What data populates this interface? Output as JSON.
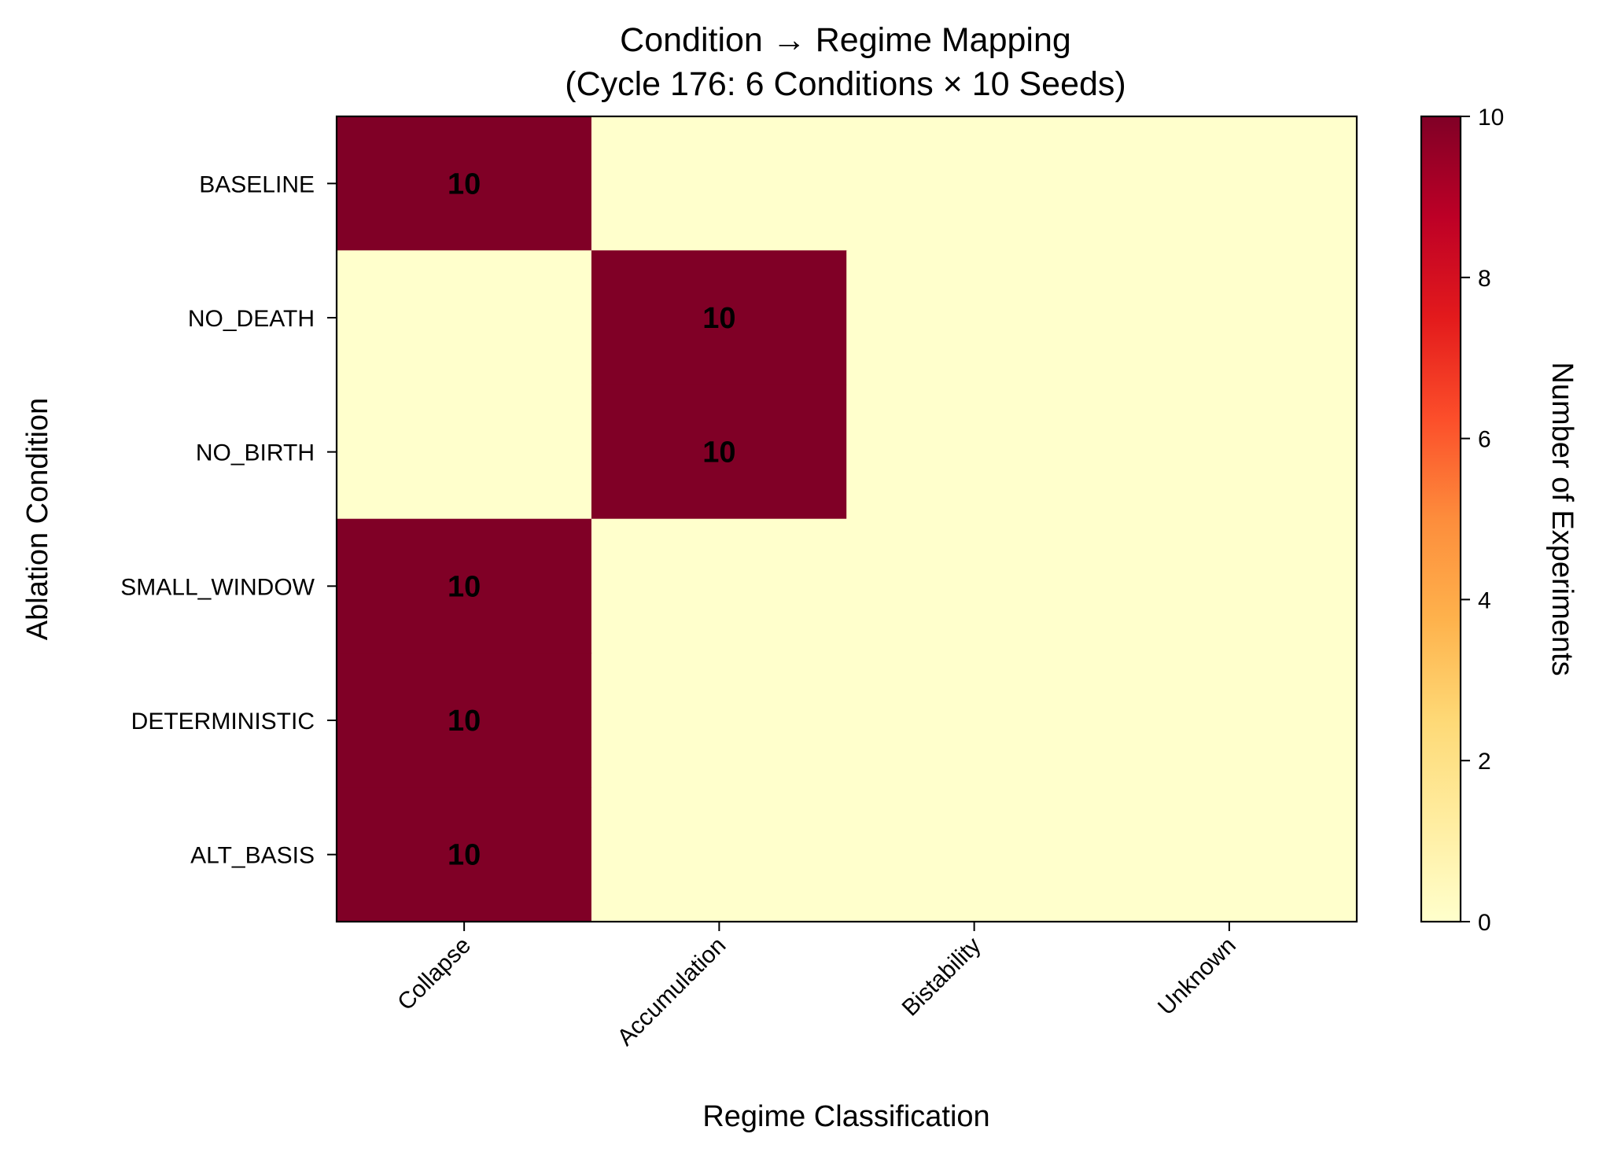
{
  "chart_data": {
    "type": "heatmap",
    "title": [
      "Condition → Regime Mapping",
      "(Cycle 176: 6 Conditions × 10 Seeds)"
    ],
    "xlabel": "Regime Classification",
    "ylabel": "Ablation Condition",
    "colorbar_label": "Number of Experiments",
    "x_categories": [
      "Collapse",
      "Accumulation",
      "Bistability",
      "Unknown"
    ],
    "y_categories": [
      "BASELINE",
      "NO_DEATH",
      "NO_BIRTH",
      "SMALL_WINDOW",
      "DETERMINISTIC",
      "ALT_BASIS"
    ],
    "values": [
      [
        10,
        0,
        0,
        0
      ],
      [
        0,
        10,
        0,
        0
      ],
      [
        0,
        10,
        0,
        0
      ],
      [
        10,
        0,
        0,
        0
      ],
      [
        10,
        0,
        0,
        0
      ],
      [
        10,
        0,
        0,
        0
      ]
    ],
    "cell_labels_shown_for_nonzero": true,
    "colorbar_range": [
      0,
      10
    ],
    "colorbar_ticks": [
      0,
      2,
      4,
      6,
      8,
      10
    ],
    "colormap": "YlOrRd",
    "colormap_stops": [
      "#ffffcc",
      "#ffeda0",
      "#fed976",
      "#feb24c",
      "#fd8d3c",
      "#fc4e2a",
      "#e31a1c",
      "#bd0026",
      "#800026"
    ],
    "grid": false
  }
}
